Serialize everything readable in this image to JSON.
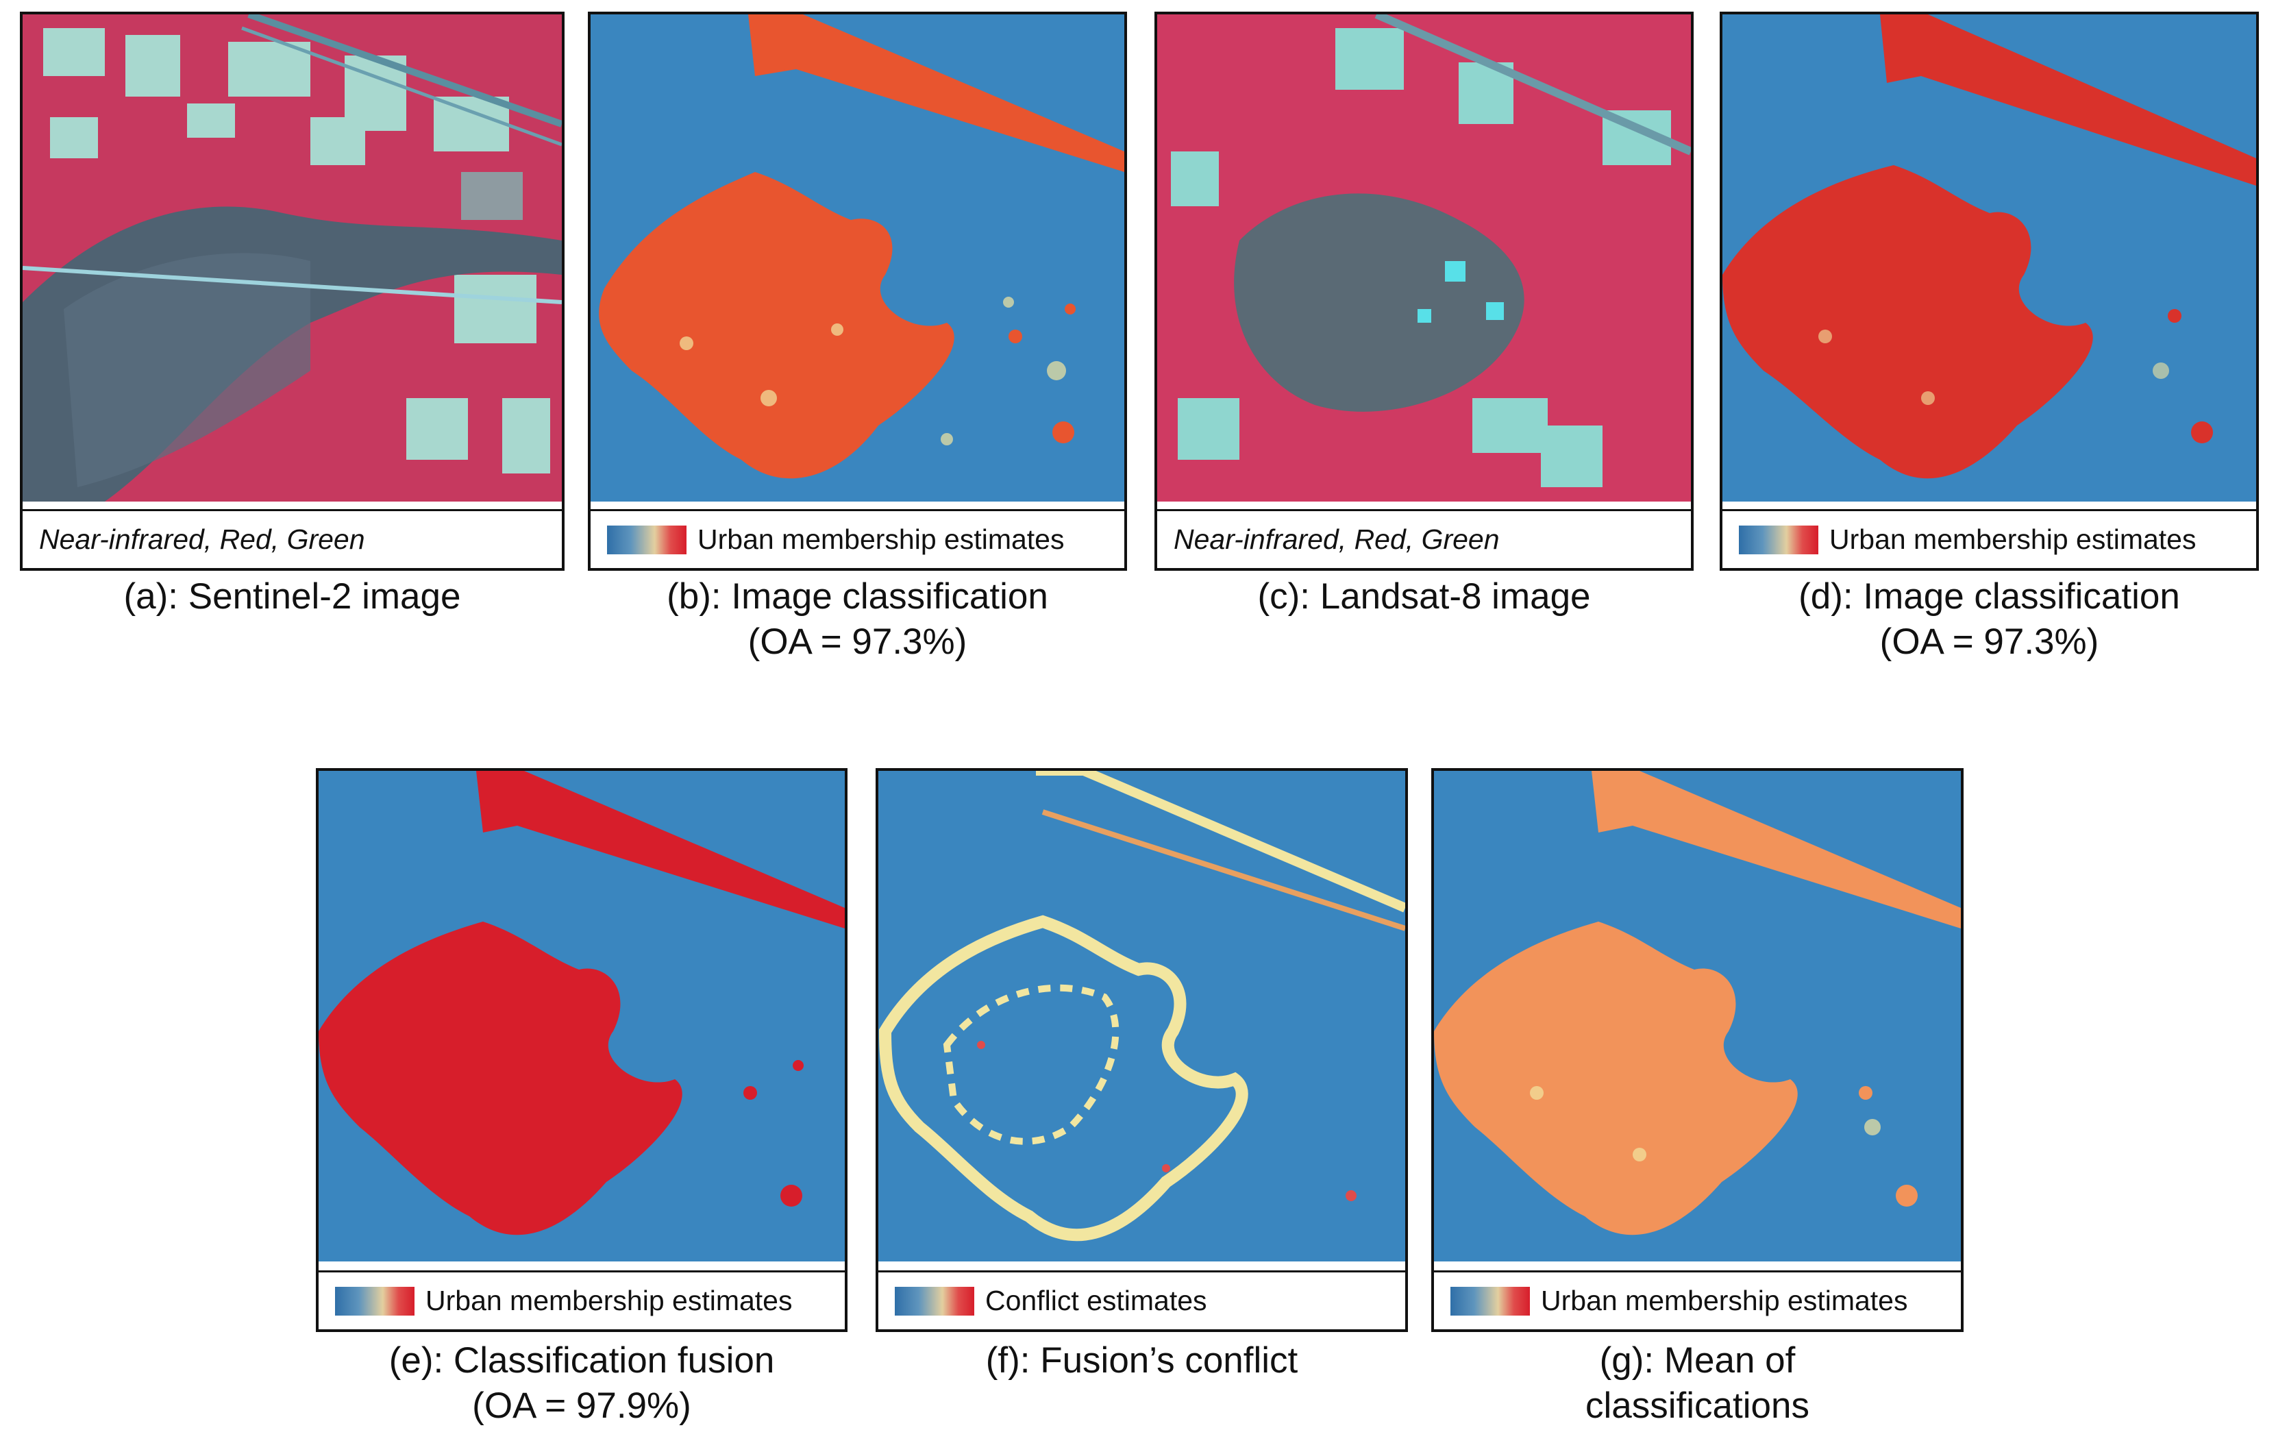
{
  "colors": {
    "class_background": "#3a86bf",
    "urban_high": "#d9322b",
    "urban_orange": "#e8552f",
    "mean_orange": "#f2935a",
    "conflict_yellow": "#f2e6a0",
    "vegetation_red": "#d23a62",
    "field_cyan": "#9fd6cf"
  },
  "panels": [
    {
      "id": "a",
      "legend_text": "Near-infrared, Red, Green",
      "legend_style": "italic",
      "caption": "(a): Sentinel-2 image",
      "caption_line2": ""
    },
    {
      "id": "b",
      "legend_text": "Urban membership estimates",
      "legend_style": "colorbar",
      "caption": "(b): Image classification",
      "caption_line2": "(OA = 97.3%)"
    },
    {
      "id": "c",
      "legend_text": "Near-infrared, Red, Green",
      "legend_style": "italic",
      "caption": "(c): Landsat-8 image",
      "caption_line2": ""
    },
    {
      "id": "d",
      "legend_text": "Urban membership estimates",
      "legend_style": "colorbar",
      "caption": "(d): Image classification",
      "caption_line2": "(OA = 97.3%)"
    },
    {
      "id": "e",
      "legend_text": "Urban membership estimates",
      "legend_style": "colorbar",
      "caption": "(e): Classification fusion",
      "caption_line2": "(OA = 97.9%)"
    },
    {
      "id": "f",
      "legend_text": "Conflict estimates",
      "legend_style": "colorbar",
      "caption": "(f): Fusion’s conflict",
      "caption_line2": ""
    },
    {
      "id": "g",
      "legend_text": "Urban membership estimates",
      "legend_style": "colorbar",
      "caption": "(g): Mean of",
      "caption_line2": "classifications"
    }
  ]
}
